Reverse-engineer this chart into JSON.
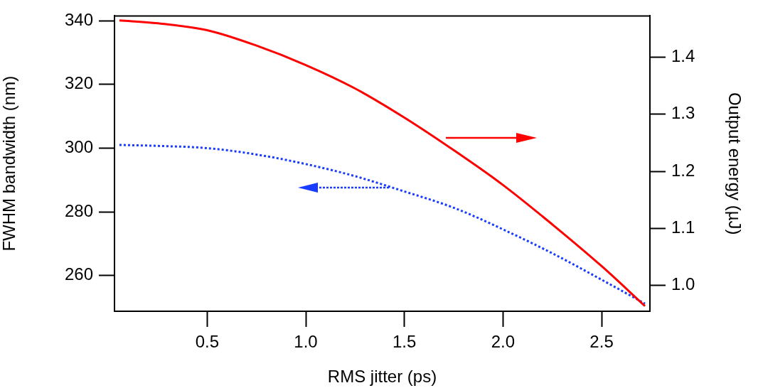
{
  "chart_data": {
    "type": "line",
    "xlabel": "RMS jitter (ps)",
    "ylabel": "FWHM bandwidth (nm)",
    "y2label": "Output energy (µJ)",
    "xlim": [
      0.03,
      2.745
    ],
    "xticks": [
      {
        "value": 0.5,
        "label": "0.5"
      },
      {
        "value": 1.0,
        "label": "1.0"
      },
      {
        "value": 1.5,
        "label": "1.5"
      },
      {
        "value": 2.0,
        "label": "2.0"
      },
      {
        "value": 2.5,
        "label": "2.5"
      }
    ],
    "ylim": [
      248.8,
      341.5
    ],
    "yticks": [
      260,
      280,
      300,
      320,
      340
    ],
    "y2lim": [
      0.955,
      1.472
    ],
    "y2ticks": [
      {
        "value": 1.0,
        "label": "1.0"
      },
      1.1,
      1.2,
      1.3,
      1.4
    ],
    "marker": "none",
    "series": [
      {
        "color": "#ff0000",
        "axis": "y2",
        "line_style": "solid",
        "x": [
          0.055,
          0.25,
          0.5,
          0.75,
          1.0,
          1.25,
          1.5,
          1.75,
          2.0,
          2.25,
          2.5,
          2.72
        ],
        "values": [
          1.464,
          1.459,
          1.447,
          1.42,
          1.386,
          1.345,
          1.294,
          1.237,
          1.176,
          1.107,
          1.034,
          0.964
        ]
      },
      {
        "color": "#1a3cff",
        "line_style": "dotted",
        "x": [
          0.055,
          0.25,
          0.5,
          0.75,
          1.0,
          1.25,
          1.5,
          1.75,
          2.0,
          2.25,
          2.5,
          2.72
        ],
        "values": [
          301,
          300.7,
          300,
          298,
          295,
          291.2,
          286.4,
          281.3,
          274.5,
          267,
          258.7,
          251.2
        ]
      }
    ]
  }
}
